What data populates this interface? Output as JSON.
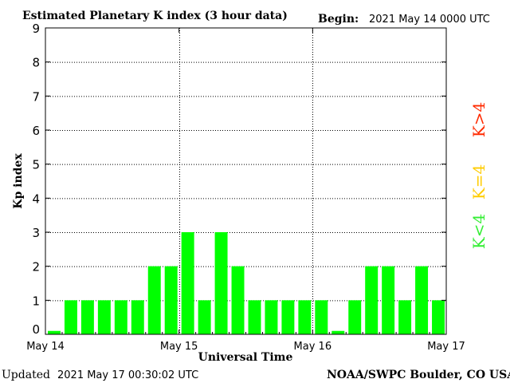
{
  "header": {
    "title": "Estimated Planetary K index (3 hour data)",
    "begin_label": "Begin:",
    "begin_value": "2021 May 14 0000 UTC"
  },
  "footer": {
    "updated_label": "Updated",
    "updated_value": "2021 May 17 00:30:02 UTC",
    "source": "NOAA/SWPC Boulder, CO USA"
  },
  "legend": [
    {
      "text": "K>4",
      "color": "#ff2a00"
    },
    {
      "text": "K=4",
      "color": "#ffcc00"
    },
    {
      "text": "K<4",
      "color": "#33ee33"
    }
  ],
  "colors": {
    "bar": "#00ff00",
    "axis": "#000000",
    "background": "#ffffff"
  },
  "chart_data": {
    "type": "bar",
    "xlabel": "Universal Time",
    "ylabel": "Kp index",
    "ylim": [
      0,
      9
    ],
    "yticks": [
      "0",
      "1",
      "2",
      "3",
      "4",
      "5",
      "6",
      "7",
      "8",
      "9"
    ],
    "xticks": [
      "May 14",
      "May 15",
      "May 16",
      "May 17"
    ],
    "grid": "dotted",
    "bars_per_day": 8,
    "values": [
      0.1,
      1,
      1,
      1,
      1,
      1,
      2,
      2,
      3,
      1,
      3,
      2,
      1,
      1,
      1,
      1,
      1,
      0.1,
      1,
      2,
      2,
      1,
      2,
      1
    ]
  }
}
